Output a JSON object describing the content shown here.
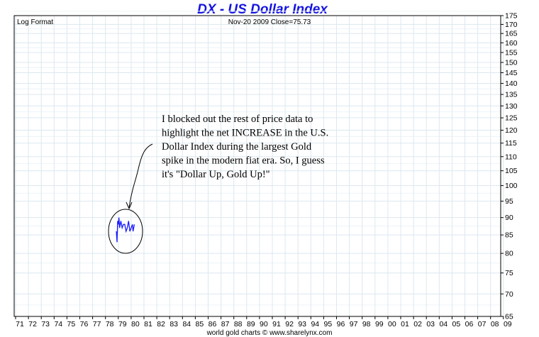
{
  "chart_data": {
    "type": "line",
    "title": "DX  -  US Dollar Index",
    "scale_label": "Log Format",
    "header_info": "Nov-20  2009   Close=75.73",
    "credit": "world gold charts © www.sharelynx.com",
    "y_scale": "log",
    "ylim": [
      65,
      175
    ],
    "y_ticks": [
      65,
      70,
      75,
      80,
      85,
      90,
      95,
      100,
      105,
      110,
      115,
      120,
      125,
      130,
      135,
      140,
      145,
      150,
      155,
      160,
      165,
      170,
      175
    ],
    "x_ticks": [
      "71",
      "72",
      "73",
      "74",
      "75",
      "76",
      "77",
      "78",
      "79",
      "80",
      "81",
      "82",
      "83",
      "84",
      "85",
      "86",
      "87",
      "88",
      "89",
      "90",
      "91",
      "92",
      "93",
      "94",
      "95",
      "96",
      "97",
      "98",
      "99",
      "00",
      "01",
      "02",
      "03",
      "04",
      "05",
      "06",
      "07",
      "08",
      "09"
    ],
    "x_first_year": 1971,
    "grid": true,
    "series": [
      {
        "color": "#1a1aff",
        "x": [
          1978.85,
          1978.9,
          1978.95,
          1979.0,
          1979.05,
          1979.1,
          1979.15,
          1979.2,
          1979.3,
          1979.4,
          1979.5,
          1979.6,
          1979.7,
          1979.8,
          1979.9,
          1980.0,
          1980.1,
          1980.15,
          1980.2,
          1980.25
        ],
        "values": [
          86,
          83,
          89,
          88,
          90,
          87,
          88,
          89,
          87,
          88,
          88,
          86,
          87,
          89,
          86,
          87,
          88,
          86,
          87,
          88
        ]
      }
    ],
    "annotation": {
      "lines": [
        "I blocked out the rest of price data to",
        "highlight the net INCREASE in the U.S.",
        "Dollar Index during the largest Gold",
        "spike in the modern fiat era. So, I guess",
        "it's \"Dollar Up, Gold Up!\""
      ]
    }
  }
}
